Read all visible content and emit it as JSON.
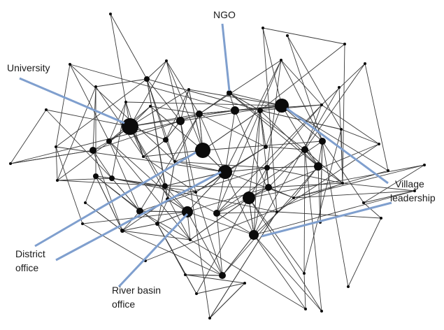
{
  "labels": {
    "ngo": "NGO",
    "university": "University",
    "village_line1": "Village",
    "village_line2": "leadership",
    "district_line1": "District",
    "district_line2": "office",
    "river_line1": "River basin",
    "river_line2": "office"
  },
  "colors": {
    "arrow": "#7f9fce",
    "node": "#0b0b0b",
    "edge": "#3a3a3a"
  }
}
